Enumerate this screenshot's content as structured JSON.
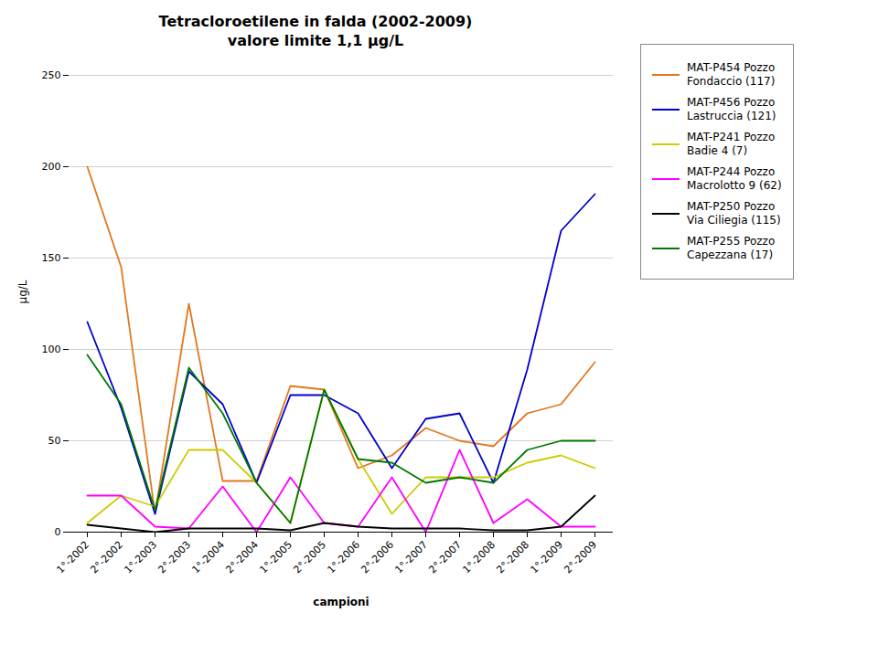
{
  "chart_data": {
    "type": "line",
    "title": "Tetracloroetilene in falda (2002-2009)",
    "subtitle": "valore limite 1,1 μg/L",
    "x_label": "campioni",
    "y_label": "μg/L",
    "categories": [
      "1°-2002",
      "2°-2002",
      "1°-2003",
      "2°-2003",
      "1°-2004",
      "2°-2004",
      "1°-2005",
      "2°-2005",
      "1°-2006",
      "2°-2006",
      "1°-2007",
      "2°-2007",
      "1°-2008",
      "2°-2008",
      "1°-2009",
      "2°-2009"
    ],
    "series": [
      {
        "name": "MAT-P454 Pozzo\nFondaccio (117)",
        "color": "#E07820",
        "values": [
          200,
          145,
          10,
          125,
          28,
          28,
          80,
          78,
          35,
          42,
          57,
          50,
          47,
          65,
          70,
          93
        ]
      },
      {
        "name": "MAT-P456 Pozzo\nLastruccia (121)",
        "color": "#0000CC",
        "values": [
          115,
          68,
          10,
          88,
          70,
          27,
          75,
          75,
          65,
          35,
          62,
          65,
          27,
          89,
          165,
          185
        ]
      },
      {
        "name": "MAT-P241 Pozzo\nBadie 4 (7)",
        "color": "#CCCC00",
        "values": [
          5,
          20,
          14,
          45,
          45,
          27,
          5,
          78,
          40,
          10,
          30,
          30,
          30,
          38,
          42,
          35
        ]
      },
      {
        "name": "MAT-P244 Pozzo\nMacrolotto 9 (62)",
        "color": "#FF00FF",
        "values": [
          20,
          20,
          3,
          2,
          25,
          0,
          30,
          5,
          3,
          30,
          0,
          45,
          5,
          18,
          3,
          3
        ]
      },
      {
        "name": "MAT-P250 Pozzo\nVia Ciliegia (115)",
        "color": "#000000",
        "values": [
          4,
          2,
          0,
          2,
          2,
          2,
          1,
          5,
          3,
          2,
          2,
          2,
          1,
          1,
          3,
          20
        ]
      },
      {
        "name": "MAT-P255 Pozzo\nCapezzana (17)",
        "color": "#007700",
        "values": [
          97,
          70,
          12,
          90,
          65,
          27,
          5,
          78,
          40,
          38,
          27,
          30,
          27,
          45,
          50,
          50
        ]
      }
    ],
    "ylim": [
      0,
      250
    ],
    "yticks": [
      0,
      50,
      100,
      150,
      200,
      250
    ],
    "grid": true,
    "legend": "right"
  }
}
